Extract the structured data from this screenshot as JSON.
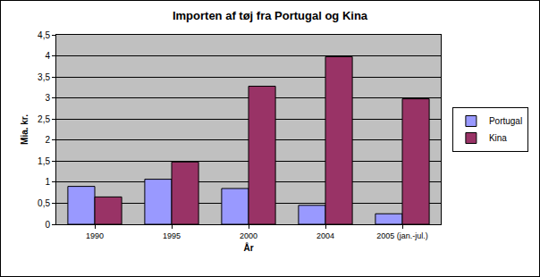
{
  "chart_data": {
    "type": "bar",
    "title": "Importen af tøj fra Portugal og Kina",
    "x_label": "År",
    "y_label": "Mia. kr.",
    "categories": [
      "1990",
      "1995",
      "2000",
      "2004",
      "2005 (jan.-jul.)"
    ],
    "series": [
      {
        "name": "Portugal",
        "color": "#9999ff",
        "values": [
          0.9,
          1.07,
          0.85,
          0.45,
          0.25
        ]
      },
      {
        "name": "Kina",
        "color": "#993366",
        "values": [
          0.65,
          1.48,
          3.28,
          3.98,
          2.98
        ]
      }
    ],
    "ylim": [
      0,
      4.5
    ],
    "yticks": [
      0,
      {
        "value": 0.5,
        "label": "0,5"
      },
      1,
      {
        "value": 1.5,
        "label": "1,5"
      },
      2,
      {
        "value": 2.5,
        "label": "2,5"
      },
      3,
      {
        "value": 3.5,
        "label": "3,5"
      },
      4,
      {
        "value": 4.5,
        "label": "4,5"
      }
    ],
    "grid": true,
    "legend": "right"
  }
}
